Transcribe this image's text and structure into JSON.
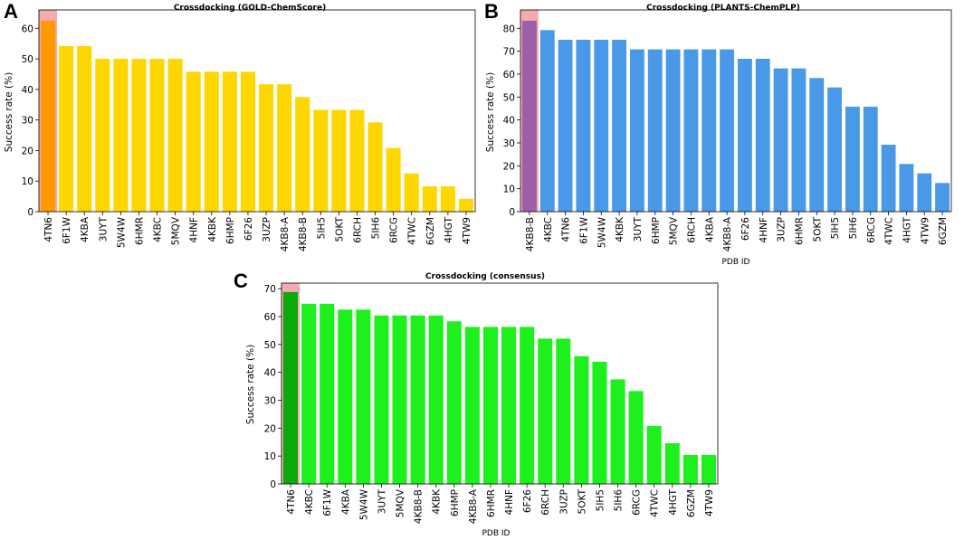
{
  "chart_data": [
    {
      "panel": "A",
      "type": "bar",
      "title": "Crossdocking (GOLD-ChemScore)",
      "xlabel": "",
      "ylabel": "Success rate (%)",
      "ylim": [
        0,
        66
      ],
      "yticks": [
        0,
        10,
        20,
        30,
        40,
        50,
        60
      ],
      "categories": [
        "4TN6",
        "6F1W",
        "4KBA",
        "3UYT",
        "5W4W",
        "6HMR",
        "4KBC",
        "5MQV",
        "4HNF",
        "4KBK",
        "6HMP",
        "6F26",
        "3UZP",
        "4KB8-A",
        "4KB8-B",
        "5IH5",
        "5OKT",
        "6RCH",
        "5IH6",
        "6RCG",
        "4TWC",
        "6GZM",
        "4HGT",
        "4TW9"
      ],
      "values": [
        62.5,
        54.2,
        54.2,
        50,
        50,
        50,
        50,
        50,
        45.8,
        45.8,
        45.8,
        45.8,
        41.7,
        41.7,
        37.5,
        33.3,
        33.3,
        33.3,
        29.2,
        20.8,
        12.5,
        8.3,
        8.3,
        4.2
      ],
      "bar_color": "#FFD700",
      "highlight_index": 0,
      "highlight_color": "#FF9900",
      "highlight_band_color": "#F4AAB0"
    },
    {
      "panel": "B",
      "type": "bar",
      "title": "Crossdocking (PLANTS-ChemPLP)",
      "xlabel": "PDB ID",
      "ylabel": "Success rate (%)",
      "ylim": [
        0,
        88
      ],
      "yticks": [
        0,
        10,
        20,
        30,
        40,
        50,
        60,
        70,
        80
      ],
      "categories": [
        "4KB8-B",
        "4KBC",
        "4TN6",
        "6F1W",
        "5W4W",
        "4KBK",
        "3UYT",
        "6HMP",
        "5MQV",
        "6RCH",
        "4KBA",
        "4KB8-A",
        "6F26",
        "4HNF",
        "3UZP",
        "6HMR",
        "5OKT",
        "5IH5",
        "5IH6",
        "6RCG",
        "4TWC",
        "4HGT",
        "4TW9",
        "6GZM"
      ],
      "values": [
        83.3,
        79.2,
        75,
        75,
        75,
        75,
        70.8,
        70.8,
        70.8,
        70.8,
        70.8,
        70.8,
        66.7,
        66.7,
        62.5,
        62.5,
        58.3,
        54.2,
        45.8,
        45.8,
        29.2,
        20.8,
        16.7,
        12.5
      ],
      "bar_color": "#4A98E8",
      "highlight_index": 0,
      "highlight_color": "#9C5FA8",
      "highlight_band_color": "#F4AAB0"
    },
    {
      "panel": "C",
      "type": "bar",
      "title": "Crossdocking (consensus)",
      "xlabel": "PDB ID",
      "ylabel": "Success rate (%)",
      "ylim": [
        0,
        72
      ],
      "yticks": [
        0,
        10,
        20,
        30,
        40,
        50,
        60,
        70
      ],
      "categories": [
        "4TN6",
        "4KBC",
        "6F1W",
        "4KBA",
        "5W4W",
        "3UYT",
        "5MQV",
        "4KB8-B",
        "4KBK",
        "6HMP",
        "4KB8-A",
        "6HMR",
        "4HNF",
        "6F26",
        "6RCH",
        "3UZP",
        "5OKT",
        "5IH5",
        "5IH6",
        "6RCG",
        "4TWC",
        "4HGT",
        "6GZM",
        "4TW9"
      ],
      "values": [
        68.8,
        64.6,
        64.6,
        62.5,
        62.5,
        60.4,
        60.4,
        60.4,
        60.4,
        58.3,
        56.3,
        56.3,
        56.3,
        56.3,
        52.1,
        52.1,
        45.8,
        43.8,
        37.5,
        33.3,
        20.8,
        14.6,
        10.4,
        10.4
      ],
      "bar_color": "#1EF01E",
      "highlight_index": 0,
      "highlight_color": "#0AAA0A",
      "highlight_band_color": "#F4AAB0"
    }
  ]
}
